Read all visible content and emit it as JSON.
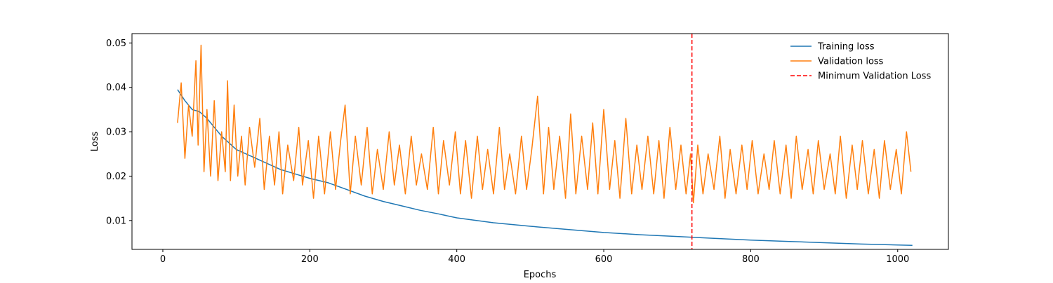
{
  "chart_data": {
    "type": "line",
    "title": "",
    "xlabel": "Epochs",
    "ylabel": "Loss",
    "xlim": [
      -42,
      1069
    ],
    "ylim": [
      0.0035,
      0.0521
    ],
    "xticks": [
      0,
      200,
      400,
      600,
      800,
      1000
    ],
    "yticks": [
      0.01,
      0.02,
      0.03,
      0.04,
      0.05
    ],
    "xtick_labels": [
      "0",
      "200",
      "400",
      "600",
      "800",
      "1000"
    ],
    "ytick_labels": [
      "0.01",
      "0.02",
      "0.03",
      "0.04",
      "0.05"
    ],
    "grid": false,
    "legend_position": "top-right",
    "series": [
      {
        "name": "Training loss",
        "color": "#1f77b4",
        "style": "solid",
        "x": [
          20,
          30,
          40,
          50,
          60,
          70,
          80,
          90,
          100,
          120,
          140,
          160,
          180,
          200,
          225,
          250,
          275,
          300,
          325,
          350,
          375,
          400,
          450,
          500,
          550,
          600,
          650,
          700,
          750,
          800,
          850,
          900,
          950,
          1000,
          1020
        ],
        "y": [
          0.0395,
          0.037,
          0.035,
          0.0345,
          0.033,
          0.031,
          0.029,
          0.0275,
          0.026,
          0.0245,
          0.023,
          0.0215,
          0.0205,
          0.0195,
          0.0185,
          0.017,
          0.0155,
          0.0143,
          0.0133,
          0.0123,
          0.0115,
          0.0106,
          0.0095,
          0.0087,
          0.008,
          0.0073,
          0.0068,
          0.0064,
          0.006,
          0.0056,
          0.0053,
          0.005,
          0.0047,
          0.0045,
          0.0044
        ]
      },
      {
        "name": "Validation loss",
        "color": "#ff7f0e",
        "style": "solid",
        "x": [
          20,
          25,
          30,
          35,
          40,
          45,
          48,
          52,
          56,
          60,
          65,
          70,
          75,
          80,
          85,
          88,
          92,
          97,
          102,
          107,
          112,
          118,
          125,
          132,
          138,
          145,
          152,
          158,
          163,
          170,
          178,
          185,
          190,
          198,
          205,
          212,
          220,
          228,
          235,
          242,
          248,
          255,
          262,
          270,
          278,
          285,
          292,
          300,
          308,
          315,
          322,
          330,
          338,
          345,
          352,
          360,
          368,
          375,
          382,
          390,
          398,
          405,
          412,
          420,
          428,
          435,
          442,
          450,
          458,
          465,
          472,
          480,
          488,
          495,
          502,
          510,
          518,
          525,
          532,
          540,
          548,
          555,
          562,
          570,
          578,
          585,
          592,
          600,
          608,
          615,
          622,
          630,
          638,
          645,
          652,
          660,
          668,
          675,
          682,
          690,
          698,
          705,
          712,
          718,
          722,
          728,
          735,
          742,
          750,
          758,
          765,
          772,
          780,
          788,
          795,
          802,
          810,
          818,
          825,
          832,
          840,
          848,
          855,
          862,
          870,
          878,
          885,
          892,
          900,
          908,
          915,
          922,
          930,
          938,
          945,
          952,
          960,
          968,
          975,
          982,
          990,
          998,
          1005,
          1012,
          1018
        ],
        "y": [
          0.032,
          0.041,
          0.024,
          0.036,
          0.029,
          0.046,
          0.027,
          0.0495,
          0.021,
          0.035,
          0.02,
          0.037,
          0.019,
          0.03,
          0.021,
          0.0415,
          0.019,
          0.036,
          0.02,
          0.029,
          0.018,
          0.031,
          0.022,
          0.033,
          0.017,
          0.029,
          0.018,
          0.03,
          0.016,
          0.027,
          0.019,
          0.031,
          0.018,
          0.028,
          0.015,
          0.029,
          0.016,
          0.03,
          0.017,
          0.028,
          0.036,
          0.016,
          0.029,
          0.018,
          0.031,
          0.016,
          0.026,
          0.017,
          0.03,
          0.018,
          0.027,
          0.016,
          0.029,
          0.018,
          0.025,
          0.017,
          0.031,
          0.016,
          0.028,
          0.018,
          0.03,
          0.016,
          0.028,
          0.015,
          0.029,
          0.017,
          0.026,
          0.016,
          0.031,
          0.017,
          0.025,
          0.016,
          0.029,
          0.017,
          0.026,
          0.038,
          0.016,
          0.031,
          0.017,
          0.029,
          0.015,
          0.034,
          0.016,
          0.029,
          0.017,
          0.032,
          0.016,
          0.035,
          0.017,
          0.028,
          0.015,
          0.033,
          0.016,
          0.027,
          0.017,
          0.029,
          0.016,
          0.028,
          0.015,
          0.031,
          0.017,
          0.027,
          0.016,
          0.025,
          0.014,
          0.027,
          0.016,
          0.025,
          0.017,
          0.029,
          0.015,
          0.026,
          0.016,
          0.027,
          0.017,
          0.028,
          0.016,
          0.025,
          0.017,
          0.028,
          0.016,
          0.027,
          0.015,
          0.029,
          0.017,
          0.026,
          0.016,
          0.028,
          0.017,
          0.025,
          0.016,
          0.029,
          0.015,
          0.027,
          0.017,
          0.028,
          0.016,
          0.026,
          0.015,
          0.028,
          0.017,
          0.026,
          0.016,
          0.03,
          0.021
        ]
      }
    ],
    "reference_lines": [
      {
        "name": "Minimum Validation Loss",
        "orientation": "vertical",
        "x": 720,
        "color": "#ff0000",
        "style": "dashed"
      }
    ]
  }
}
